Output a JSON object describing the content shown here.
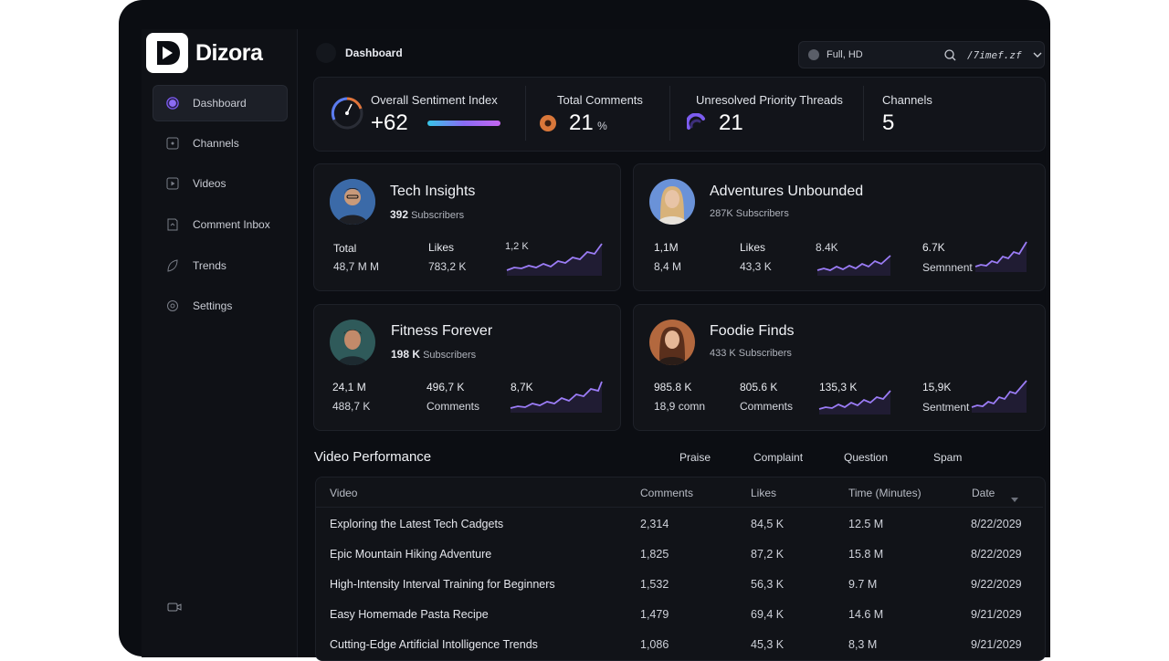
{
  "app": {
    "name": "Dizora",
    "page_title": "Dashboard"
  },
  "sidebar": {
    "items": [
      {
        "label": "Dashboard",
        "icon": "circle-dot-icon",
        "active": true
      },
      {
        "label": "Channels",
        "icon": "channels-icon"
      },
      {
        "label": "Videos",
        "icon": "video-icon"
      },
      {
        "label": "Comment Inbox",
        "icon": "inbox-icon"
      },
      {
        "label": "Trends",
        "icon": "trends-icon"
      },
      {
        "label": "Settings",
        "icon": "gear-icon"
      }
    ]
  },
  "header": {
    "resolution_label": "Full,  HD",
    "search_text": "/7imef.zf"
  },
  "stats": {
    "sentiment": {
      "label": "Overall Sentiment Index",
      "value": "+62"
    },
    "comments": {
      "label": "Total Comments",
      "value": "21",
      "unit": "%"
    },
    "threads": {
      "label": "Unresolved Priority Threads",
      "value": "21"
    },
    "channels": {
      "label": "Channels",
      "value": "5"
    }
  },
  "channels": [
    {
      "name": "Tech Insights",
      "subs_num": "392",
      "subs_label": "Subscribers",
      "m1_label": "Total",
      "m1_value": "48,7 M M",
      "m2_label": "Likes",
      "m2_value": "783,2 K",
      "spark_label": "1,2 K"
    },
    {
      "name": "Adventures Unbounded",
      "subs_num": "",
      "subs_label": "287K Subscribers",
      "m1_label": "1,1M",
      "m1_value": "8,4 M",
      "m2_label": "Likes",
      "m2_value": "43,3 K",
      "spark_label": "8.4K",
      "m3_label": "6.7K",
      "m3_value": "Semnnent"
    },
    {
      "name": "Fitness Forever",
      "subs_num": "198 K",
      "subs_label": "Subscribers",
      "m1_label": "24,1 M",
      "m1_value": "488,7 K",
      "m2_label": "496,7 K",
      "m2_value": "Comments",
      "spark_label": "8,7K"
    },
    {
      "name": "Foodie Finds",
      "subs_num": "",
      "subs_label": "433 K Subscribers",
      "m1_label": "985.8 K",
      "m1_value": "18,9 comn",
      "m2_label": "805.6 K",
      "m2_value": "Comments",
      "spark_label": "135,3 K",
      "m3_label": "15,9K",
      "m3_value": "Sentment"
    }
  ],
  "video_performance": {
    "title": "Video Performance",
    "filters": [
      "Praise",
      "Complaint",
      "Question",
      "Spam"
    ],
    "columns": [
      "Video",
      "Comments",
      "Likes",
      "Time (Minutes)",
      "Date"
    ],
    "rows": [
      {
        "video": "Exploring the Latest Tech Cadgets",
        "comments": "2,314",
        "likes": "84,5 K",
        "time": "12.5 M",
        "date": "8/22/2029"
      },
      {
        "video": "Epic Mountain Hiking Adventure",
        "comments": "1,825",
        "likes": "87,2 K",
        "time": "15.8 M",
        "date": "8/22/2029"
      },
      {
        "video": "High-Intensity Interval Training for Beginners",
        "comments": "1,532",
        "likes": "56,3 K",
        "time": "9.7 M",
        "date": "9/22/2029"
      },
      {
        "video": "Easy Homemade Pasta Recipe",
        "comments": "1,479",
        "likes": "69,4 K",
        "time": "14.6 M",
        "date": "9/21/2029"
      },
      {
        "video": "Cutting-Edge Artificial Intolligence Trends",
        "comments": "1,086",
        "likes": "45,3 K",
        "time": "8,3 M",
        "date": "9/21/2029"
      }
    ]
  },
  "colors": {
    "accent": "#8b5cf6",
    "background": "#0b0d12",
    "card": "#121419",
    "orange": "#d9773a"
  }
}
